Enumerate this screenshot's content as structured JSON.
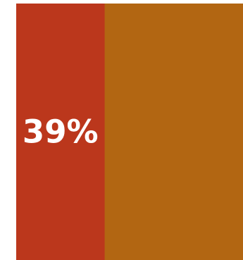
{
  "chart_data": {
    "type": "bar",
    "orientation": "stacked-100",
    "title": "",
    "xlabel": "",
    "ylabel": "",
    "grid": false,
    "legend": "none",
    "series": [
      {
        "value": 39,
        "label": "39%",
        "color": "#bb371c"
      },
      {
        "value": 61,
        "label": "",
        "color": "#b26612"
      }
    ]
  }
}
